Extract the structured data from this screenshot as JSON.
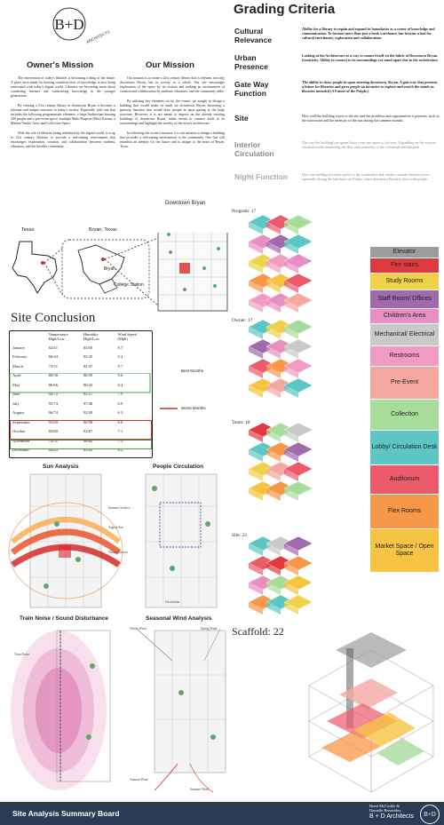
{
  "logo": {
    "letters": "B+D",
    "ring_text": "ARCHITECTS"
  },
  "grading": {
    "title": "Grading Criteria",
    "criteria": [
      {
        "name": "Cultural Relevance",
        "desc": "Ability for a library to regain and expand its boundaries as a center of knowledge and communication. To become more than just a book warehouse, but become a tool for cultural enrichment, exploration and collaboration."
      },
      {
        "name": "Urban Presence",
        "desc": "Looking at the Architecture as a way to connect itself on the fabric of Downtown Bryan. Iconicivity. Ability to connect to its surroundings yet stand apart due to the architecture."
      },
      {
        "name": "Gate Way Function",
        "desc": "The ability to draw people in upon entering downtown, Bryan. A gate way that presents a future for libraries and gives people an incentive to explore and enrich the minds as libraries intended (A Future of the People.)"
      },
      {
        "name": "Site",
        "desc": "How well the building reacts to the site and the problems and opportunities it presents, such as the train noise and the intensity of the sun during the summer months."
      },
      {
        "name": "Interior Circulation",
        "desc": "The way the building's program flows from one space to the next. Expanding on the exterior circulation and connecting the flow and symmetry of the colonnade and the park."
      },
      {
        "name": "Night Function",
        "desc": "How our building becomes useful to the community and vendors outside daytime hours, especially during the late hours on Friday, when downtown Bryan is alive with people."
      }
    ]
  },
  "owners_mission": {
    "title": "Owner's Mission",
    "paragraphs": [
      "The reinvention of today's libraries is becoming a thing of the future. A place once made for housing countless texts of knowledge is now being reinvented with today's digital world. Libraries are becoming more about connecting learners and constructing knowledge in the younger generations.",
      "By creating a 21st century library in downtown Bryan it becomes a relevant and unique structure in today's society. Especially with one that includes the following programmatic elements: a large Auditorium housing 200 people and a pre-event space; multiple Multi-Purpose (Flex) Rooms, a Market/Vendor Area, and Collection Space.",
      "With the role of libraries being redefined by the digital world, it is up to 21st century libraries to provide a welcoming environment that encourages exploration, creation, and collaboration between students, educators, and the broader community."
    ]
  },
  "our_mission": {
    "title": "Our Mission",
    "paragraphs": [
      "Our mission is to create a 21st century library that is relevant, not only downtown Bryan, but in society as a whole. Our site encourages exploration of the space by its visitors and making an environment of creation and collaboration by students, educators, and the community alike.",
      "By utilizing key elements set by the owner, we sought to design a building that would make its mark on downtown Bryan, becoming a gateway function that would draw people in upon gazing at the large structure. However, it is not meant to impose on the already existing buildings of downtown Bryan, rather meant to connect itself to its surroundings and highlight the novelty of the town's architecture.",
      "In following the owner's mission, it is our mission to design a building that provides a welcoming environment to the community. One that will establish an identity for the future and is unique to the heart of Bryan, Texas."
    ]
  },
  "maps": {
    "downtown_title": "Downtown Bryan",
    "texas_label": "Texas",
    "bryan_texas_label": "Bryan, Texas",
    "bryan_label": "Bryan",
    "college_station_label": "College Station"
  },
  "site_conclusion": {
    "title": "Site Conclusion",
    "headers": [
      "",
      "Temperature High/Low",
      "Humidity High/Low",
      "Wind Speed (Mph)"
    ],
    "rows": [
      [
        "January",
        "62/41",
        "83/50",
        "8.7"
      ],
      [
        "February",
        "66/44",
        "85/45",
        "9.2"
      ],
      [
        "March",
        "73/51",
        "82/47",
        "9.7"
      ],
      [
        "April",
        "80/58",
        "86/59",
        "9.6"
      ],
      [
        "May",
        "86/66",
        "90/43",
        "8.4"
      ],
      [
        "June",
        "92/72",
        "95/57",
        "7.9"
      ],
      [
        "July",
        "95/74",
        "97/48",
        "6.9"
      ],
      [
        "August",
        "96/74",
        "92/49",
        "6.3"
      ],
      [
        "September",
        "91/69",
        "90/58",
        "6.6"
      ],
      [
        "October",
        "82/60",
        "92/67",
        "7.1"
      ],
      [
        "November",
        "72/51",
        "90/62",
        "7.3"
      ],
      [
        "December",
        "64/43",
        "85/45",
        "8.2"
      ]
    ],
    "best_label": "Best Months",
    "worst_label": "Worst Months",
    "best_color": "#3aa640",
    "worst_color": "#d42a2a"
  },
  "analysis_panels": {
    "sun": {
      "title": "Sun Analysis",
      "labels": [
        "Summer Solstice",
        "August Sun",
        "Winter Solstice"
      ]
    },
    "people": {
      "title": "People Circulation",
      "labels": [
        "Circulation"
      ]
    },
    "train": {
      "title": "Train Noise / Sound Disturbance",
      "labels": [
        "Train Noise"
      ]
    },
    "wind": {
      "title": "Seasonal Wind Analysis",
      "labels": [
        "Winter Wind",
        "Spring Wind",
        "Autumn Wind",
        "Summer Wind"
      ]
    }
  },
  "iso_diagrams": [
    {
      "label": "Program: 17"
    },
    {
      "label": "Owner: 17"
    },
    {
      "label": "Team: 18"
    },
    {
      "label": "Site: 22"
    }
  ],
  "scaffold_label": "Scaffold: 22",
  "legend": [
    {
      "label": "Elevator",
      "color": "#9d9d9d"
    },
    {
      "label": "Fire stairs",
      "color": "#e03a3e"
    },
    {
      "label": "Study Rooms",
      "color": "#f0d24a"
    },
    {
      "label": "Staff Room/ Offices",
      "color": "#a06aad"
    },
    {
      "label": "Children's Area",
      "color": "#e88fc2"
    },
    {
      "label": "Mechanical/ Electrical",
      "color": "#c9c9c9"
    },
    {
      "label": "Restrooms",
      "color": "#f29bc2"
    },
    {
      "label": "Pre-Event",
      "color": "#f5a7a0"
    },
    {
      "label": "Collection",
      "color": "#a8dc9a"
    },
    {
      "label": "Lobby/ Circulation Desk",
      "color": "#5cc6c4"
    },
    {
      "label": "Auditorium",
      "color": "#ec5a6b"
    },
    {
      "label": "Flex Rooms",
      "color": "#f79748"
    },
    {
      "label": "Market Space / Open Space",
      "color": "#f7c342"
    }
  ],
  "footer": {
    "title": "Site Analysis Summary Board",
    "names_line1": "Brent McCorkle &",
    "names_line2": "Danielle Benavidez",
    "firm": "B + D Architects",
    "badge": "B+D"
  }
}
